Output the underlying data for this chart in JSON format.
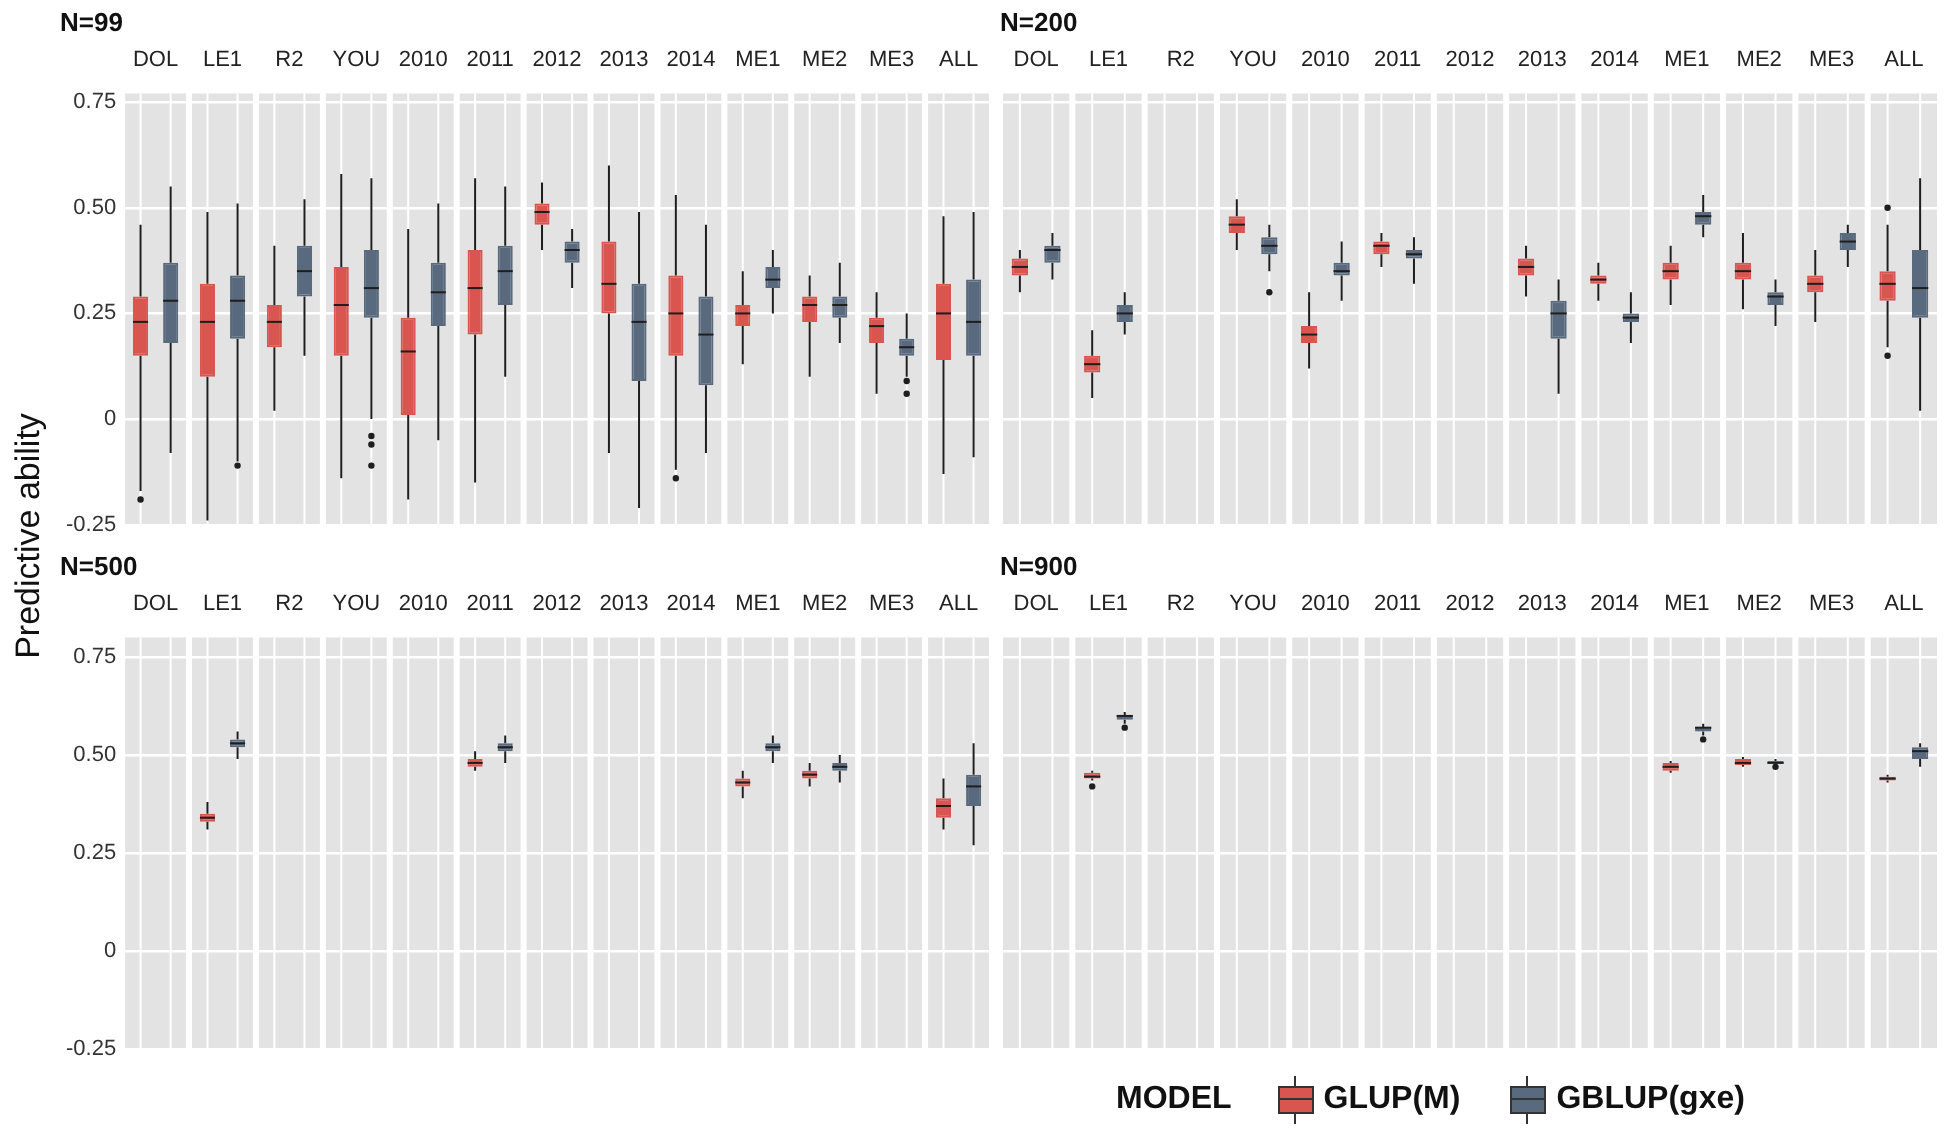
{
  "chart_data": [
    {
      "type": "box",
      "title": "N=99",
      "ylabel": "Predictive ability",
      "categories": [
        "DOL",
        "LE1",
        "R2",
        "YOU",
        "2010",
        "2011",
        "2012",
        "2013",
        "2014",
        "ME1",
        "ME2",
        "ME3",
        "ALL"
      ],
      "ylim": [
        -0.25,
        0.77
      ],
      "yticks": [
        0.75,
        {
          "value": 0.5,
          "label": "0.50"
        },
        0.25,
        0,
        -0.25
      ],
      "grid": true,
      "series": [
        {
          "color": "#d95550",
          "boxes": [
            {
              "low": -0.17,
              "q1": 0.15,
              "median": 0.23,
              "q3": 0.29,
              "high": 0.46,
              "outliers": [
                -0.19
              ]
            },
            {
              "low": -0.24,
              "q1": 0.1,
              "median": 0.23,
              "q3": 0.32,
              "high": 0.49
            },
            {
              "low": 0.02,
              "q1": 0.17,
              "median": 0.23,
              "q3": 0.27,
              "high": 0.41
            },
            {
              "low": -0.14,
              "q1": 0.15,
              "median": 0.27,
              "q3": 0.36,
              "high": 0.58
            },
            {
              "low": -0.19,
              "q1": 0.01,
              "median": 0.16,
              "q3": 0.24,
              "high": 0.45
            },
            {
              "low": -0.15,
              "q1": 0.2,
              "median": 0.31,
              "q3": 0.4,
              "high": 0.57
            },
            {
              "low": 0.4,
              "q1": 0.46,
              "median": 0.49,
              "q3": 0.51,
              "high": 0.56
            },
            {
              "low": -0.08,
              "q1": 0.25,
              "median": 0.32,
              "q3": 0.42,
              "high": 0.6
            },
            {
              "low": -0.12,
              "q1": 0.15,
              "median": 0.25,
              "q3": 0.34,
              "high": 0.53,
              "outliers": [
                -0.14
              ]
            },
            {
              "low": 0.13,
              "q1": 0.22,
              "median": 0.25,
              "q3": 0.27,
              "high": 0.35
            },
            {
              "low": 0.1,
              "q1": 0.23,
              "median": 0.27,
              "q3": 0.29,
              "high": 0.34
            },
            {
              "low": 0.06,
              "q1": 0.18,
              "median": 0.22,
              "q3": 0.24,
              "high": 0.3
            },
            {
              "low": -0.13,
              "q1": 0.14,
              "median": 0.25,
              "q3": 0.32,
              "high": 0.48
            }
          ]
        },
        {
          "color": "#5a6a7e",
          "boxes": [
            {
              "low": -0.08,
              "q1": 0.18,
              "median": 0.28,
              "q3": 0.37,
              "high": 0.55
            },
            {
              "low": -0.1,
              "q1": 0.19,
              "median": 0.28,
              "q3": 0.34,
              "high": 0.51,
              "outliers": [
                -0.11
              ]
            },
            {
              "low": 0.15,
              "q1": 0.29,
              "median": 0.35,
              "q3": 0.41,
              "high": 0.52
            },
            {
              "low": 0.0,
              "q1": 0.24,
              "median": 0.31,
              "q3": 0.4,
              "high": 0.57,
              "outliers": [
                -0.04,
                -0.06,
                -0.11
              ]
            },
            {
              "low": -0.05,
              "q1": 0.22,
              "median": 0.3,
              "q3": 0.37,
              "high": 0.51
            },
            {
              "low": 0.1,
              "q1": 0.27,
              "median": 0.35,
              "q3": 0.41,
              "high": 0.55
            },
            {
              "low": 0.31,
              "q1": 0.37,
              "median": 0.4,
              "q3": 0.42,
              "high": 0.45
            },
            {
              "low": -0.21,
              "q1": 0.09,
              "median": 0.23,
              "q3": 0.32,
              "high": 0.49
            },
            {
              "low": -0.08,
              "q1": 0.08,
              "median": 0.2,
              "q3": 0.29,
              "high": 0.46
            },
            {
              "low": 0.25,
              "q1": 0.31,
              "median": 0.33,
              "q3": 0.36,
              "high": 0.4
            },
            {
              "low": 0.18,
              "q1": 0.24,
              "median": 0.27,
              "q3": 0.29,
              "high": 0.37
            },
            {
              "low": 0.1,
              "q1": 0.15,
              "median": 0.17,
              "q3": 0.19,
              "high": 0.25,
              "outliers": [
                0.09,
                0.06
              ]
            },
            {
              "low": -0.09,
              "q1": 0.15,
              "median": 0.23,
              "q3": 0.33,
              "high": 0.49
            }
          ]
        }
      ]
    },
    {
      "type": "box",
      "title": "N=200",
      "categories": [
        "DOL",
        "LE1",
        "R2",
        "YOU",
        "2010",
        "2011",
        "2012",
        "2013",
        "2014",
        "ME1",
        "ME2",
        "ME3",
        "ALL"
      ],
      "ylim": [
        -0.25,
        0.77
      ],
      "yticks": [
        0.75,
        0.5,
        0.25,
        0,
        -0.25
      ],
      "grid": true,
      "tick_labels": "x",
      "series": [
        {
          "color": "#d95550",
          "boxes": [
            {
              "low": 0.3,
              "q1": 0.34,
              "median": 0.36,
              "q3": 0.38,
              "high": 0.4
            },
            {
              "low": 0.05,
              "q1": 0.11,
              "median": 0.13,
              "q3": 0.15,
              "high": 0.21
            },
            null,
            {
              "low": 0.4,
              "q1": 0.44,
              "median": 0.46,
              "q3": 0.48,
              "high": 0.52
            },
            {
              "low": 0.12,
              "q1": 0.18,
              "median": 0.2,
              "q3": 0.22,
              "high": 0.3
            },
            {
              "low": 0.36,
              "q1": 0.39,
              "median": 0.41,
              "q3": 0.42,
              "high": 0.44
            },
            null,
            {
              "low": 0.29,
              "q1": 0.34,
              "median": 0.36,
              "q3": 0.38,
              "high": 0.41
            },
            {
              "low": 0.28,
              "q1": 0.32,
              "median": 0.33,
              "q3": 0.34,
              "high": 0.37
            },
            {
              "low": 0.27,
              "q1": 0.33,
              "median": 0.35,
              "q3": 0.37,
              "high": 0.41
            },
            {
              "low": 0.26,
              "q1": 0.33,
              "median": 0.35,
              "q3": 0.37,
              "high": 0.44
            },
            {
              "low": 0.23,
              "q1": 0.3,
              "median": 0.32,
              "q3": 0.34,
              "high": 0.4
            },
            {
              "low": 0.17,
              "q1": 0.28,
              "median": 0.32,
              "q3": 0.35,
              "high": 0.46,
              "outliers": [
                0.5,
                0.15
              ]
            }
          ]
        },
        {
          "color": "#5a6a7e",
          "boxes": [
            {
              "low": 0.33,
              "q1": 0.37,
              "median": 0.4,
              "q3": 0.41,
              "high": 0.44
            },
            {
              "low": 0.2,
              "q1": 0.23,
              "median": 0.25,
              "q3": 0.27,
              "high": 0.3
            },
            null,
            {
              "low": 0.35,
              "q1": 0.39,
              "median": 0.41,
              "q3": 0.43,
              "high": 0.46,
              "outliers": [
                0.3
              ]
            },
            {
              "low": 0.28,
              "q1": 0.34,
              "median": 0.35,
              "q3": 0.37,
              "high": 0.42
            },
            {
              "low": 0.32,
              "q1": 0.38,
              "median": 0.39,
              "q3": 0.4,
              "high": 0.43
            },
            null,
            {
              "low": 0.06,
              "q1": 0.19,
              "median": 0.25,
              "q3": 0.28,
              "high": 0.33
            },
            {
              "low": 0.18,
              "q1": 0.23,
              "median": 0.24,
              "q3": 0.25,
              "high": 0.3
            },
            {
              "low": 0.43,
              "q1": 0.46,
              "median": 0.48,
              "q3": 0.49,
              "high": 0.53
            },
            {
              "low": 0.22,
              "q1": 0.27,
              "median": 0.29,
              "q3": 0.3,
              "high": 0.33
            },
            {
              "low": 0.36,
              "q1": 0.4,
              "median": 0.42,
              "q3": 0.44,
              "high": 0.46
            },
            {
              "low": 0.02,
              "q1": 0.24,
              "median": 0.31,
              "q3": 0.4,
              "high": 0.57
            }
          ]
        }
      ]
    },
    {
      "type": "box",
      "title": "N=500",
      "categories": [
        "DOL",
        "LE1",
        "R2",
        "YOU",
        "2010",
        "2011",
        "2012",
        "2013",
        "2014",
        "ME1",
        "ME2",
        "ME3",
        "ALL"
      ],
      "ylim": [
        -0.25,
        0.8
      ],
      "yticks": [
        0.75,
        {
          "value": 0.5,
          "label": "0.50"
        },
        0.25,
        0,
        -0.25
      ],
      "grid": true,
      "series": [
        {
          "color": "#d95550",
          "boxes": [
            null,
            {
              "low": 0.31,
              "q1": 0.33,
              "median": 0.34,
              "q3": 0.35,
              "high": 0.38
            },
            null,
            null,
            null,
            {
              "low": 0.46,
              "q1": 0.47,
              "median": 0.48,
              "q3": 0.49,
              "high": 0.51
            },
            null,
            null,
            null,
            {
              "low": 0.39,
              "q1": 0.42,
              "median": 0.43,
              "q3": 0.44,
              "high": 0.46
            },
            {
              "low": 0.42,
              "q1": 0.44,
              "median": 0.45,
              "q3": 0.46,
              "high": 0.48
            },
            null,
            {
              "low": 0.31,
              "q1": 0.34,
              "median": 0.37,
              "q3": 0.39,
              "high": 0.44
            }
          ]
        },
        {
          "color": "#5a6a7e",
          "boxes": [
            null,
            {
              "low": 0.49,
              "q1": 0.52,
              "median": 0.53,
              "q3": 0.54,
              "high": 0.56
            },
            null,
            null,
            null,
            {
              "low": 0.48,
              "q1": 0.51,
              "median": 0.52,
              "q3": 0.53,
              "high": 0.55
            },
            null,
            null,
            null,
            {
              "low": 0.48,
              "q1": 0.51,
              "median": 0.52,
              "q3": 0.53,
              "high": 0.55
            },
            {
              "low": 0.43,
              "q1": 0.46,
              "median": 0.47,
              "q3": 0.48,
              "high": 0.5
            },
            null,
            {
              "low": 0.27,
              "q1": 0.37,
              "median": 0.42,
              "q3": 0.45,
              "high": 0.53
            }
          ]
        }
      ]
    },
    {
      "type": "box",
      "title": "N=900",
      "categories": [
        "DOL",
        "LE1",
        "R2",
        "YOU",
        "2010",
        "2011",
        "2012",
        "2013",
        "2014",
        "ME1",
        "ME2",
        "ME3",
        "ALL"
      ],
      "ylim": [
        -0.25,
        0.8
      ],
      "yticks": [
        0.75,
        0.5,
        0.25,
        0,
        -0.25
      ],
      "grid": true,
      "tick_labels": "x",
      "legend": "bottom",
      "legend_title": "MODEL",
      "series": [
        {
          "name": "GLUP(M)",
          "color": "#d95550",
          "boxes": [
            null,
            {
              "low": 0.435,
              "q1": 0.44,
              "median": 0.445,
              "q3": 0.455,
              "high": 0.46,
              "outliers": [
                0.42
              ]
            },
            null,
            null,
            null,
            null,
            null,
            null,
            null,
            {
              "low": 0.455,
              "q1": 0.46,
              "median": 0.47,
              "q3": 0.48,
              "high": 0.485
            },
            {
              "low": 0.47,
              "q1": 0.475,
              "median": 0.48,
              "q3": 0.49,
              "high": 0.495
            },
            null,
            {
              "low": 0.43,
              "q1": 0.435,
              "median": 0.44,
              "q3": 0.445,
              "high": 0.45
            }
          ]
        },
        {
          "name": "GBLUP(gxe)",
          "color": "#5a6a7e",
          "boxes": [
            null,
            {
              "low": 0.58,
              "q1": 0.59,
              "median": 0.6,
              "q3": 0.6,
              "high": 0.61,
              "outliers": [
                0.57
              ]
            },
            null,
            null,
            null,
            null,
            null,
            null,
            null,
            {
              "low": 0.55,
              "q1": 0.56,
              "median": 0.57,
              "q3": 0.57,
              "high": 0.58,
              "outliers": [
                0.54
              ]
            },
            {
              "low": 0.475,
              "q1": 0.48,
              "median": 0.48,
              "q3": 0.485,
              "high": 0.49,
              "outliers": [
                0.47
              ]
            },
            null,
            {
              "low": 0.47,
              "q1": 0.49,
              "median": 0.51,
              "q3": 0.52,
              "high": 0.53
            }
          ]
        }
      ]
    }
  ]
}
